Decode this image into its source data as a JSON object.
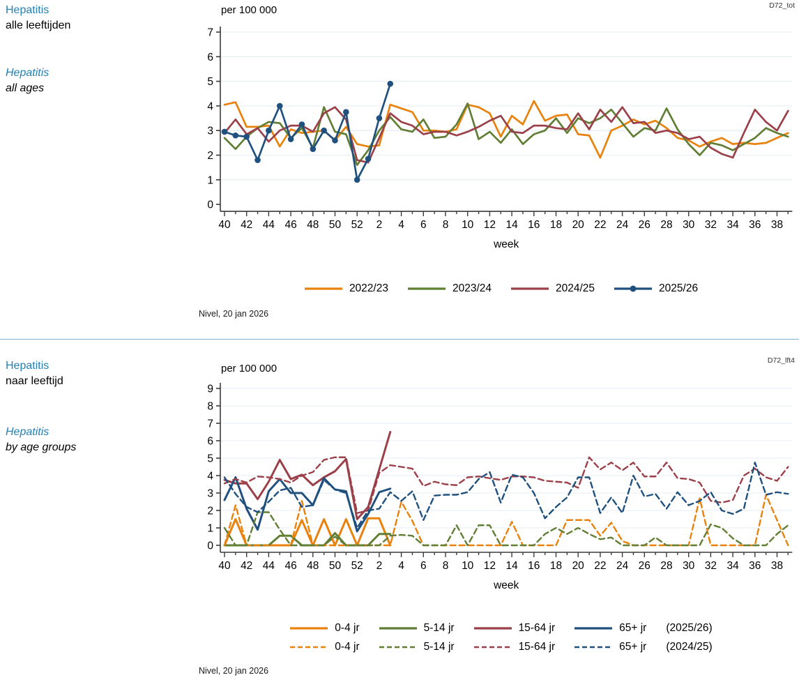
{
  "colors": {
    "accent_blue_text": "#2580B3",
    "divider": "#7FB2D0",
    "grid": "#E9EFF6",
    "axis": "#3A3A3A",
    "orange": "#E8820D",
    "green": "#617E35",
    "maroon": "#9B4049",
    "navy": "#1F507E"
  },
  "panels": [
    {
      "tag": "D72_tot",
      "title_nl": "Hepatitis",
      "subtitle_nl": "alle leeftijden",
      "title_en": "Hepatitis",
      "subtitle_en": "all ages",
      "source": "Nivel, 20 jan 2026"
    },
    {
      "tag": "D72_lft4",
      "title_nl": "Hepatitis",
      "subtitle_nl": "naar leeftijd",
      "title_en": "Hepatitis",
      "subtitle_en": "by age groups",
      "source": "Nivel, 20 jan 2026"
    }
  ],
  "chart_data": [
    {
      "type": "line",
      "unit_label": "per 100 000",
      "xlabel": "week",
      "ylim": [
        0,
        7
      ],
      "grid": true,
      "legend_position": "bottom",
      "categories": [
        "40",
        "41",
        "42",
        "43",
        "44",
        "45",
        "46",
        "47",
        "48",
        "49",
        "50",
        "51",
        "52",
        "1",
        "2",
        "3",
        "4",
        "5",
        "6",
        "7",
        "8",
        "9",
        "10",
        "11",
        "12",
        "13",
        "14",
        "15",
        "16",
        "17",
        "18",
        "19",
        "20",
        "21",
        "22",
        "23",
        "24",
        "25",
        "26",
        "27",
        "28",
        "29",
        "30",
        "31",
        "32",
        "33",
        "34",
        "35",
        "36",
        "37",
        "38",
        "39"
      ],
      "series": [
        {
          "name": "2022/23",
          "color": "#E8820D",
          "dash": "solid",
          "marker": "none",
          "values": [
            4.05,
            4.15,
            3.15,
            3.15,
            3.2,
            2.35,
            3.05,
            2.9,
            2.95,
            3.0,
            2.6,
            3.15,
            2.45,
            2.35,
            2.4,
            4.05,
            3.9,
            3.75,
            3.0,
            3.0,
            2.95,
            3.05,
            4.05,
            3.95,
            3.7,
            2.75,
            3.6,
            3.25,
            4.2,
            3.4,
            3.6,
            3.65,
            2.85,
            2.8,
            1.9,
            3.0,
            3.2,
            3.45,
            3.25,
            3.4,
            3.1,
            2.7,
            2.6,
            2.35,
            2.55,
            2.7,
            2.45,
            2.5,
            2.45,
            2.5,
            2.7,
            2.9
          ]
        },
        {
          "name": "2023/24",
          "color": "#617E35",
          "dash": "solid",
          "marker": "none",
          "values": [
            2.7,
            2.25,
            2.75,
            3.1,
            3.35,
            3.3,
            2.7,
            3.1,
            2.3,
            3.95,
            2.95,
            2.85,
            1.6,
            2.2,
            3.0,
            3.55,
            3.05,
            2.95,
            3.45,
            2.7,
            2.75,
            3.25,
            4.1,
            2.65,
            2.95,
            2.5,
            3.05,
            2.45,
            2.85,
            3.0,
            3.5,
            2.9,
            3.5,
            3.3,
            3.5,
            3.85,
            3.3,
            2.75,
            3.1,
            3.0,
            3.9,
            3.05,
            2.45,
            2.0,
            2.5,
            2.4,
            2.2,
            2.45,
            2.7,
            3.1,
            2.9,
            2.75
          ]
        },
        {
          "name": "2024/25",
          "color": "#9B4049",
          "dash": "solid",
          "marker": "none",
          "values": [
            2.9,
            3.45,
            2.85,
            3.1,
            2.55,
            3.0,
            3.2,
            3.2,
            2.95,
            3.7,
            3.95,
            3.45,
            1.8,
            1.7,
            2.7,
            3.7,
            3.35,
            3.2,
            2.85,
            2.95,
            2.95,
            2.8,
            2.95,
            3.15,
            3.4,
            3.6,
            2.95,
            2.9,
            3.2,
            3.2,
            3.1,
            3.05,
            3.7,
            3.05,
            3.85,
            3.35,
            3.95,
            3.3,
            3.35,
            2.9,
            3.0,
            2.9,
            2.65,
            2.75,
            2.3,
            2.05,
            1.9,
            2.9,
            3.85,
            3.35,
            3.0,
            3.8
          ]
        },
        {
          "name": "2025/26",
          "color": "#1F507E",
          "dash": "solid",
          "marker": "circle",
          "values": [
            2.95,
            2.8,
            2.75,
            1.8,
            3.0,
            4.0,
            2.65,
            3.25,
            2.25,
            3.0,
            2.6,
            3.75,
            1.0,
            1.85,
            3.5,
            4.9
          ]
        }
      ]
    },
    {
      "type": "line",
      "unit_label": "per 100 000",
      "xlabel": "week",
      "ylim": [
        0,
        9
      ],
      "grid": true,
      "legend_position": "bottom",
      "legend_suffixes": [
        "(2025/26)",
        "(2024/25)"
      ],
      "categories": [
        "40",
        "41",
        "42",
        "43",
        "44",
        "45",
        "46",
        "47",
        "48",
        "49",
        "50",
        "51",
        "52",
        "1",
        "2",
        "3",
        "4",
        "5",
        "6",
        "7",
        "8",
        "9",
        "10",
        "11",
        "12",
        "13",
        "14",
        "15",
        "16",
        "17",
        "18",
        "19",
        "20",
        "21",
        "22",
        "23",
        "24",
        "25",
        "26",
        "27",
        "28",
        "29",
        "30",
        "31",
        "32",
        "33",
        "34",
        "35",
        "36",
        "37",
        "38",
        "39"
      ],
      "series": [
        {
          "name": "0-4 jr",
          "group": "2025/26",
          "color": "#E8820D",
          "dash": "solid",
          "marker": "none",
          "values": [
            0,
            1.5,
            0,
            0,
            0,
            0,
            0,
            1.45,
            0,
            1.5,
            0,
            1.5,
            0,
            1.55,
            1.55,
            0
          ]
        },
        {
          "name": "5-14 jr",
          "group": "2025/26",
          "color": "#617E35",
          "dash": "solid",
          "marker": "none",
          "values": [
            0,
            0,
            0,
            0,
            0,
            0.55,
            0.55,
            0,
            0,
            0,
            0.7,
            0,
            0,
            0,
            0.65,
            0.65
          ]
        },
        {
          "name": "15-64 jr",
          "group": "2025/26",
          "color": "#9B4049",
          "dash": "solid",
          "marker": "none",
          "values": [
            3.75,
            3.55,
            3.55,
            2.65,
            3.65,
            4.9,
            3.8,
            4.05,
            3.45,
            3.9,
            4.25,
            4.95,
            1.5,
            2.2,
            4.35,
            6.5
          ]
        },
        {
          "name": "65+ jr",
          "group": "2025/26",
          "color": "#1F507E",
          "dash": "solid",
          "marker": "none",
          "values": [
            2.6,
            3.9,
            2.1,
            0.9,
            3.1,
            3.8,
            3.0,
            3.0,
            2.3,
            3.85,
            3.2,
            3.1,
            0.8,
            1.8,
            3.05,
            3.25
          ]
        },
        {
          "name": "0-4 jr",
          "group": "2024/25",
          "color": "#E8820D",
          "dash": "dashed",
          "marker": "none",
          "values": [
            0,
            2.3,
            0,
            0,
            0,
            0,
            0,
            2.55,
            0,
            0,
            0,
            0,
            0,
            0,
            0,
            0,
            2.5,
            1.4,
            0,
            0,
            0,
            0,
            0,
            0,
            0,
            0,
            1.35,
            0,
            0,
            0,
            0,
            1.45,
            1.45,
            1.45,
            0.55,
            1.3,
            0.25,
            0,
            0,
            0,
            0,
            0,
            0,
            2.7,
            0,
            0,
            0,
            0,
            0,
            2.9,
            1.45,
            0
          ]
        },
        {
          "name": "5-14 jr",
          "group": "2024/25",
          "color": "#617E35",
          "dash": "dashed",
          "marker": "none",
          "values": [
            1.0,
            0,
            0,
            1.9,
            1.9,
            0.9,
            0,
            0,
            0,
            0,
            0.5,
            0,
            0,
            0,
            0,
            0.55,
            0.6,
            0.55,
            0,
            0,
            0,
            1.15,
            0,
            1.15,
            1.15,
            0,
            0,
            0,
            0,
            0.65,
            1.0,
            0.65,
            1.0,
            0.65,
            0.35,
            0.45,
            0,
            0,
            0,
            0.45,
            0,
            0,
            0,
            0,
            1.2,
            1.0,
            0.4,
            0,
            0,
            0,
            0.65,
            1.15
          ]
        },
        {
          "name": "15-64 jr",
          "group": "2024/25",
          "color": "#9B4049",
          "dash": "dashed",
          "marker": "none",
          "values": [
            3.55,
            3.8,
            3.6,
            3.95,
            3.9,
            3.8,
            3.6,
            4.0,
            4.2,
            4.9,
            5.05,
            5.05,
            1.85,
            2.0,
            4.15,
            4.6,
            4.5,
            4.4,
            3.4,
            3.65,
            3.5,
            3.45,
            3.9,
            3.95,
            3.85,
            3.75,
            3.95,
            3.95,
            3.9,
            3.7,
            3.65,
            3.6,
            3.3,
            5.05,
            4.35,
            4.75,
            4.3,
            4.75,
            3.95,
            3.95,
            4.75,
            3.85,
            3.8,
            3.6,
            2.55,
            2.45,
            2.6,
            4.0,
            4.4,
            3.9,
            3.7,
            4.5
          ]
        },
        {
          "name": "65+ jr",
          "group": "2024/25",
          "color": "#1F507E",
          "dash": "dashed",
          "marker": "none",
          "values": [
            3.9,
            2.95,
            2.2,
            1.9,
            2.5,
            3.15,
            3.3,
            2.2,
            2.3,
            3.75,
            3.2,
            3.0,
            1.0,
            2.0,
            2.1,
            3.05,
            2.55,
            3.1,
            1.45,
            2.85,
            2.9,
            2.9,
            3.05,
            3.8,
            4.2,
            2.45,
            4.05,
            3.9,
            3.0,
            1.55,
            2.2,
            2.75,
            3.9,
            3.9,
            1.85,
            2.75,
            1.85,
            4.0,
            2.8,
            2.95,
            2.1,
            3.05,
            2.3,
            2.55,
            3.05,
            2.0,
            1.8,
            2.1,
            4.75,
            2.9,
            3.05,
            2.95
          ]
        }
      ]
    }
  ]
}
